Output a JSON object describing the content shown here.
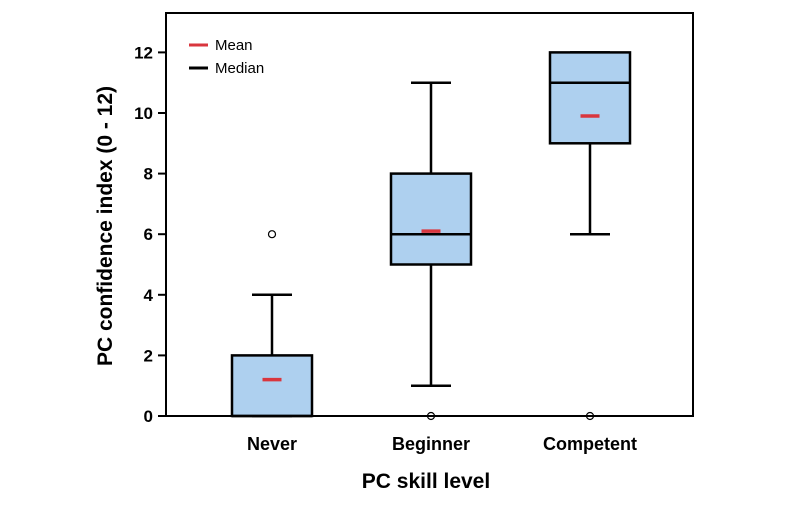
{
  "chart_data": {
    "type": "boxplot",
    "xlabel": "PC skill level",
    "ylabel": "PC confidence index (0 - 12)",
    "categories": [
      "Never",
      "Beginner",
      "Competent"
    ],
    "ylim": [
      0,
      13.3
    ],
    "yticks": [
      0,
      2,
      4,
      6,
      8,
      10,
      12
    ],
    "grid": false,
    "legend_position": "top-left",
    "legend": [
      {
        "label": "Mean",
        "color": "#d9363e"
      },
      {
        "label": "Median",
        "color": "#000000"
      }
    ],
    "box_color": "#aed0ef",
    "series": [
      {
        "category": "Never",
        "min": 0,
        "q1": 0,
        "median": 0,
        "q3": 2,
        "max": 4,
        "mean": 1.2,
        "outliers": [
          6
        ]
      },
      {
        "category": "Beginner",
        "min": 1,
        "q1": 5,
        "median": 6,
        "q3": 8,
        "max": 11,
        "mean": 6.1,
        "outliers": [
          0
        ]
      },
      {
        "category": "Competent",
        "min": 6,
        "q1": 9,
        "median": 11,
        "q3": 12,
        "max": 12,
        "mean": 9.9,
        "outliers": [
          0
        ]
      }
    ]
  }
}
